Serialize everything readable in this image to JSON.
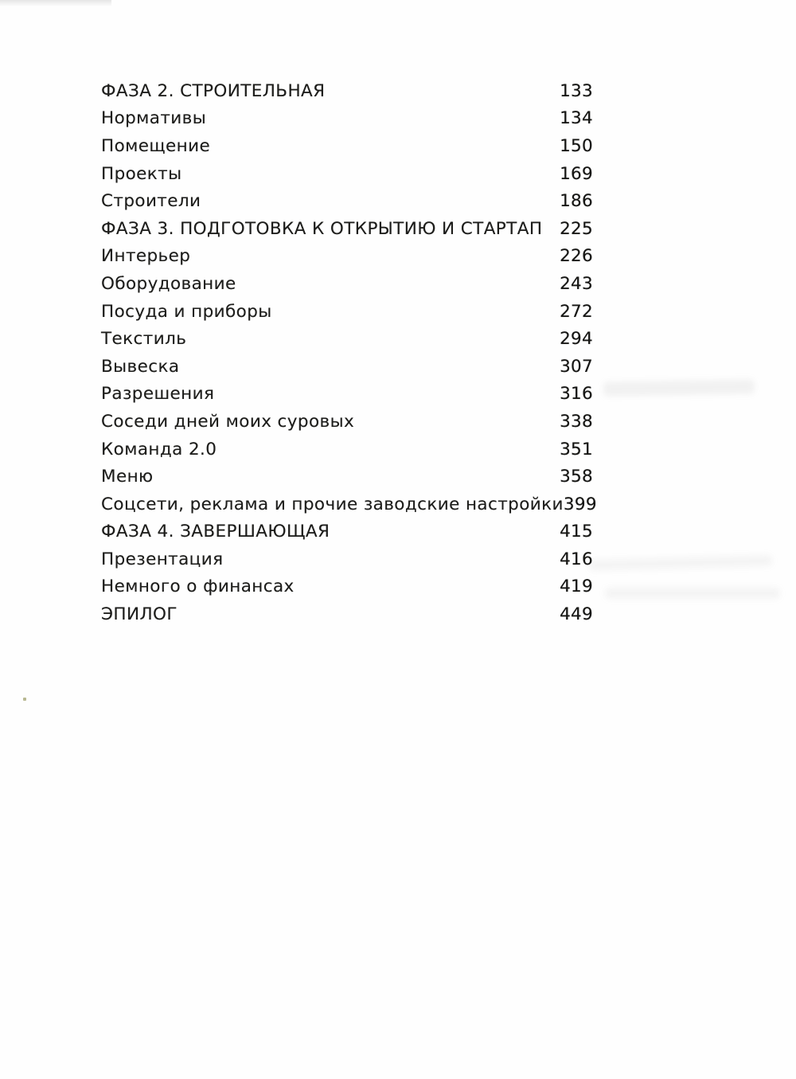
{
  "page": {
    "background_color": "#fefefe",
    "text_color": "#1d1d1b"
  },
  "toc": {
    "entries": [
      {
        "label": "ФАЗА 2. СТРОИТЕЛЬНАЯ",
        "page": "133",
        "level": "section"
      },
      {
        "label": "Нормативы",
        "page": "134",
        "level": "item"
      },
      {
        "label": "Помещение",
        "page": "150",
        "level": "item"
      },
      {
        "label": "Проекты",
        "page": "169",
        "level": "item"
      },
      {
        "label": "Строители",
        "page": "186",
        "level": "item"
      },
      {
        "label": "ФАЗА 3. ПОДГОТОВКА К ОТКРЫТИЮ И СТАРТАП",
        "page": "225",
        "level": "section"
      },
      {
        "label": "Интерьер",
        "page": "226",
        "level": "item"
      },
      {
        "label": "Оборудование",
        "page": "243",
        "level": "item"
      },
      {
        "label": "Посуда и приборы",
        "page": "272",
        "level": "item"
      },
      {
        "label": "Текстиль",
        "page": "294",
        "level": "item"
      },
      {
        "label": "Вывеска",
        "page": "307",
        "level": "item"
      },
      {
        "label": "Разрешения",
        "page": "316",
        "level": "item"
      },
      {
        "label": "Соседи дней моих суровых",
        "page": "338",
        "level": "item"
      },
      {
        "label": "Команда 2.0",
        "page": "351",
        "level": "item"
      },
      {
        "label": "Меню",
        "page": "358",
        "level": "item"
      },
      {
        "label": "Соцсети, реклама и прочие заводские настройки",
        "page": "399",
        "level": "item"
      },
      {
        "label": "ФАЗА 4. ЗАВЕРШАЮЩАЯ",
        "page": "415",
        "level": "section"
      },
      {
        "label": "Презентация",
        "page": "416",
        "level": "item"
      },
      {
        "label": "Немного о финансах",
        "page": "419",
        "level": "item"
      },
      {
        "label": "ЭПИЛОГ",
        "page": "449",
        "level": "section"
      }
    ]
  }
}
